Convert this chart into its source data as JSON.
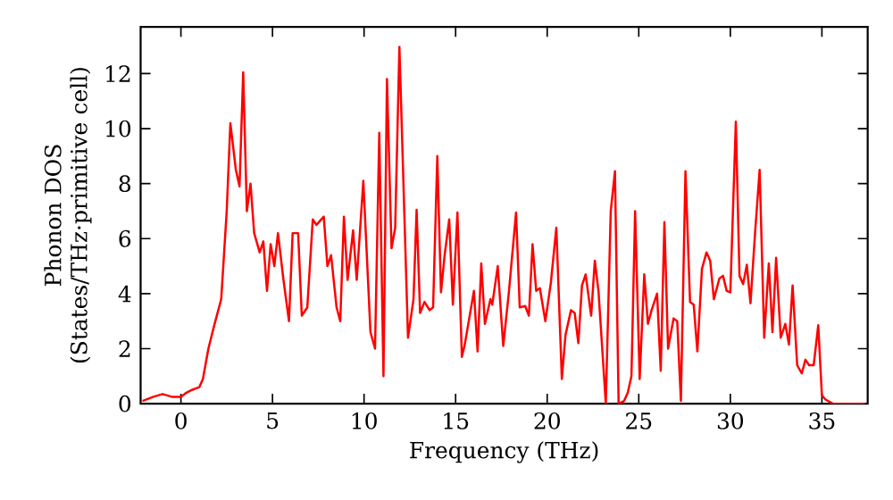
{
  "chart_data": {
    "type": "line",
    "xlabel": "Frequency (THz)",
    "ylabel": "Phonon DOS (States/THz·primitive cell)",
    "color": "#ff0000",
    "xlim": [
      -2.2,
      37.5
    ],
    "ylim": [
      0,
      13.7
    ],
    "xticks": [
      0,
      5,
      10,
      15,
      20,
      25,
      30,
      35
    ],
    "yticks": [
      0,
      2,
      4,
      6,
      8,
      10,
      12
    ],
    "x": [
      -2.1,
      -1.5,
      -1.0,
      -0.5,
      0,
      0.3,
      0.6,
      1.0,
      1.2,
      1.5,
      1.8,
      2.2,
      2.5,
      2.7,
      3.0,
      3.2,
      3.4,
      3.6,
      3.8,
      4.0,
      4.3,
      4.5,
      4.7,
      4.9,
      5.1,
      5.3,
      5.6,
      5.9,
      6.1,
      6.4,
      6.6,
      6.9,
      7.2,
      7.4,
      7.8,
      8.0,
      8.2,
      8.5,
      8.7,
      8.9,
      9.1,
      9.4,
      9.6,
      9.96,
      10.35,
      10.6,
      10.83,
      11.06,
      11.25,
      11.5,
      11.7,
      11.93,
      12.4,
      12.7,
      12.87,
      13.06,
      13.3,
      13.58,
      13.77,
      14.0,
      14.2,
      14.4,
      14.65,
      14.85,
      15.1,
      15.34,
      15.5,
      16.0,
      16.2,
      16.4,
      16.6,
      16.9,
      17.0,
      17.3,
      17.6,
      17.9,
      18.3,
      18.5,
      18.8,
      19.0,
      19.2,
      19.4,
      19.6,
      19.9,
      20.2,
      20.5,
      20.8,
      21.0,
      21.3,
      21.5,
      21.7,
      21.9,
      22.1,
      22.4,
      22.6,
      22.8,
      23.2,
      23.47,
      23.7,
      23.9,
      24.2,
      24.4,
      24.6,
      24.8,
      25.05,
      25.3,
      25.5,
      25.7,
      26.0,
      26.2,
      26.4,
      26.6,
      26.9,
      27.1,
      27.3,
      27.55,
      27.8,
      28.0,
      28.2,
      28.45,
      28.7,
      28.9,
      29.1,
      29.4,
      29.6,
      29.8,
      30.0,
      30.3,
      30.5,
      30.7,
      30.9,
      31.1,
      31.35,
      31.6,
      31.85,
      32.1,
      32.3,
      32.5,
      32.75,
      33.0,
      33.2,
      33.4,
      33.65,
      33.9,
      34.1,
      34.3,
      34.55,
      34.8,
      35.0,
      35.2,
      35.6,
      37.35
    ],
    "values": [
      0.1,
      0.25,
      0.35,
      0.25,
      0.25,
      0.4,
      0.5,
      0.6,
      0.9,
      2.0,
      2.8,
      3.8,
      7,
      10.2,
      8.5,
      7.9,
      12.05,
      7.0,
      8.0,
      6.2,
      5.5,
      5.9,
      4.1,
      5.8,
      5.0,
      6.2,
      4.5,
      3.0,
      6.2,
      6.2,
      3.2,
      3.5,
      6.7,
      6.5,
      6.8,
      5.0,
      5.4,
      3.5,
      3.0,
      6.8,
      4.5,
      6.3,
      4.5,
      8.1,
      2.6,
      2.0,
      9.85,
      1.0,
      11.8,
      5.65,
      6.4,
      12.97,
      2.4,
      3.8,
      7.05,
      3.3,
      3.7,
      3.4,
      3.5,
      9.0,
      4.05,
      5.4,
      6.7,
      3.6,
      6.95,
      1.7,
      2.15,
      4.1,
      1.9,
      5.1,
      2.9,
      3.8,
      3.6,
      5.0,
      2.1,
      4.0,
      6.95,
      3.5,
      3.55,
      3.2,
      5.8,
      4.1,
      4.2,
      3.0,
      4.4,
      6.4,
      0.9,
      2.5,
      3.4,
      3.3,
      2.2,
      4.3,
      4.7,
      3.2,
      5.2,
      4.1,
      0,
      7.0,
      8.45,
      0,
      0.1,
      0.4,
      1.0,
      7.0,
      0.9,
      4.7,
      2.9,
      3.4,
      4.0,
      1.2,
      6.6,
      2.0,
      3.1,
      3.0,
      0.1,
      8.45,
      3.7,
      3.6,
      1.9,
      4.9,
      5.5,
      5.2,
      3.8,
      4.55,
      4.65,
      4.1,
      4.05,
      10.25,
      4.65,
      4.35,
      5.05,
      3.65,
      6.2,
      8.5,
      2.4,
      5.1,
      2.6,
      5.3,
      2.4,
      2.9,
      2.15,
      4.3,
      1.4,
      1.1,
      1.6,
      1.4,
      1.4,
      2.85,
      0.3,
      0.15,
      0,
      0
    ]
  }
}
